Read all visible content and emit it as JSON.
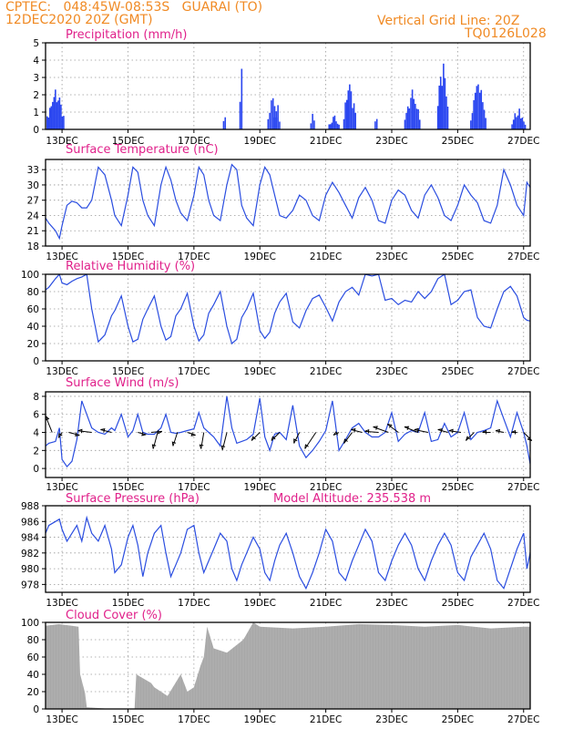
{
  "header": {
    "line1": "CPTEC:   048:45W-08:53S   GUARAI (TO)",
    "line2": "12DEC2020 20Z (GMT)",
    "grid_note": "Vertical Grid Line: 20Z",
    "code": "TQ0126L028"
  },
  "colors": {
    "header": "#f08a24",
    "title": "#e0208a",
    "line": "#2a4de0",
    "bar": "#2a46f0",
    "cloud": "#a8a8a8",
    "arrow": "#000000",
    "grid": "#999999"
  },
  "x_axis": {
    "ticks": [
      "13DEC",
      "15DEC",
      "17DEC",
      "19DEC",
      "21DEC",
      "23DEC",
      "25DEC",
      "27DEC"
    ],
    "tick_days": [
      1,
      3,
      5,
      7,
      9,
      11,
      13,
      15
    ],
    "xlim": [
      0.5,
      15.2
    ]
  },
  "chart_data": [
    {
      "type": "bar",
      "title": "Precipitation (mm/h)",
      "ylim": [
        0,
        5
      ],
      "yticks": [
        0,
        1,
        2,
        3,
        4,
        5
      ],
      "grid": true,
      "bursts": [
        {
          "day": 0.55,
          "width": 0.5,
          "peak": 2.3
        },
        {
          "day": 5.9,
          "width": 0.05,
          "peak": 0.7
        },
        {
          "day": 6.4,
          "width": 0.05,
          "peak": 3.5
        },
        {
          "day": 7.25,
          "width": 0.25,
          "peak": 1.8
        },
        {
          "day": 7.45,
          "width": 0.15,
          "peak": 1.4
        },
        {
          "day": 8.55,
          "width": 0.1,
          "peak": 0.9
        },
        {
          "day": 9.1,
          "width": 0.3,
          "peak": 0.8
        },
        {
          "day": 9.55,
          "width": 0.35,
          "peak": 2.6
        },
        {
          "day": 10.5,
          "width": 0.05,
          "peak": 0.6
        },
        {
          "day": 11.4,
          "width": 0.45,
          "peak": 2.3
        },
        {
          "day": 12.4,
          "width": 0.3,
          "peak": 3.8
        },
        {
          "day": 13.4,
          "width": 0.45,
          "peak": 2.6
        },
        {
          "day": 14.65,
          "width": 0.4,
          "peak": 1.2
        }
      ]
    },
    {
      "type": "line",
      "title": "Surface Temperature (nC)",
      "ylim": [
        18,
        35
      ],
      "yticks": [
        18,
        21,
        24,
        27,
        30,
        33
      ],
      "grid": true,
      "x": [
        0.5,
        0.6,
        0.8,
        0.92,
        1.0,
        1.15,
        1.3,
        1.45,
        1.6,
        1.75,
        1.9,
        2.1,
        2.3,
        2.5,
        2.6,
        2.8,
        3.0,
        3.15,
        3.3,
        3.45,
        3.6,
        3.8,
        4.0,
        4.15,
        4.3,
        4.45,
        4.6,
        4.8,
        5.0,
        5.15,
        5.3,
        5.45,
        5.6,
        5.8,
        6.0,
        6.15,
        6.3,
        6.45,
        6.6,
        6.8,
        7.0,
        7.15,
        7.3,
        7.45,
        7.6,
        7.8,
        8.0,
        8.2,
        8.4,
        8.6,
        8.8,
        9.0,
        9.2,
        9.4,
        9.6,
        9.8,
        10.0,
        10.2,
        10.4,
        10.6,
        10.8,
        11.0,
        11.2,
        11.4,
        11.6,
        11.8,
        12.0,
        12.2,
        12.4,
        12.6,
        12.8,
        13.0,
        13.2,
        13.4,
        13.6,
        13.8,
        14.0,
        14.2,
        14.4,
        14.6,
        14.8,
        15.0,
        15.1,
        15.2
      ],
      "values": [
        23.5,
        22.5,
        21,
        19.5,
        22,
        26,
        26.8,
        26.5,
        25.5,
        25.5,
        27,
        33.5,
        32,
        27,
        24,
        22,
        28,
        33.5,
        32.5,
        27,
        24,
        22,
        30,
        33.5,
        31,
        27,
        24.5,
        23,
        28,
        33.5,
        32,
        27,
        24,
        23,
        30,
        34,
        33,
        26,
        23.5,
        22,
        30,
        33.5,
        32,
        28,
        24,
        23.5,
        25,
        28,
        27,
        24,
        23,
        28,
        30.5,
        28.5,
        26,
        23.5,
        27.5,
        29.5,
        27,
        23,
        22.5,
        27,
        29,
        28,
        25,
        23.5,
        28,
        30,
        27.5,
        24,
        23,
        26,
        30,
        28,
        26.5,
        23,
        22.5,
        26,
        33,
        30,
        26,
        24,
        30.5,
        29.5
      ]
    },
    {
      "type": "line",
      "title": "Relative Humidity (%)",
      "ylim": [
        0,
        100
      ],
      "yticks": [
        0,
        20,
        40,
        60,
        80,
        100
      ],
      "grid": true,
      "x": [
        0.5,
        0.6,
        0.8,
        0.92,
        1.0,
        1.15,
        1.3,
        1.45,
        1.6,
        1.75,
        1.9,
        2.1,
        2.3,
        2.5,
        2.6,
        2.8,
        3.0,
        3.15,
        3.3,
        3.45,
        3.6,
        3.8,
        4.0,
        4.15,
        4.3,
        4.45,
        4.6,
        4.8,
        5.0,
        5.15,
        5.3,
        5.45,
        5.6,
        5.8,
        6.0,
        6.15,
        6.3,
        6.45,
        6.6,
        6.8,
        7.0,
        7.15,
        7.3,
        7.45,
        7.6,
        7.8,
        8.0,
        8.2,
        8.4,
        8.6,
        8.8,
        9.0,
        9.2,
        9.4,
        9.6,
        9.8,
        10.0,
        10.2,
        10.4,
        10.6,
        10.8,
        11.0,
        11.2,
        11.4,
        11.6,
        11.8,
        12.0,
        12.2,
        12.4,
        12.6,
        12.8,
        13.0,
        13.2,
        13.4,
        13.6,
        13.8,
        14.0,
        14.2,
        14.4,
        14.6,
        14.8,
        15.0,
        15.1,
        15.2
      ],
      "values": [
        82,
        85,
        95,
        100,
        90,
        88,
        92,
        95,
        97,
        100,
        60,
        22,
        30,
        52,
        58,
        75,
        40,
        22,
        25,
        48,
        60,
        75,
        40,
        24,
        28,
        52,
        60,
        78,
        40,
        23,
        30,
        55,
        65,
        80,
        40,
        20,
        25,
        50,
        60,
        78,
        35,
        26,
        33,
        55,
        68,
        78,
        45,
        38,
        58,
        72,
        76,
        62,
        46,
        68,
        80,
        85,
        76,
        100,
        98,
        100,
        70,
        72,
        65,
        70,
        68,
        80,
        72,
        80,
        95,
        100,
        65,
        70,
        80,
        82,
        50,
        40,
        38,
        60,
        80,
        86,
        75,
        50,
        47,
        46
      ]
    },
    {
      "type": "line",
      "title": "Surface Wind (m/s)",
      "ylim": [
        -1,
        8.5
      ],
      "yticks": [
        0,
        2,
        4,
        6,
        8
      ],
      "grid": true,
      "x": [
        0.5,
        0.6,
        0.8,
        0.92,
        1.0,
        1.15,
        1.3,
        1.45,
        1.6,
        1.75,
        1.9,
        2.1,
        2.3,
        2.5,
        2.6,
        2.8,
        3.0,
        3.15,
        3.3,
        3.45,
        3.6,
        3.8,
        4.0,
        4.15,
        4.3,
        4.45,
        4.6,
        4.8,
        5.0,
        5.15,
        5.3,
        5.45,
        5.6,
        5.8,
        6.0,
        6.15,
        6.3,
        6.45,
        6.6,
        6.8,
        7.0,
        7.15,
        7.3,
        7.45,
        7.6,
        7.8,
        8.0,
        8.2,
        8.4,
        8.6,
        8.8,
        9.0,
        9.2,
        9.4,
        9.6,
        9.8,
        10.0,
        10.2,
        10.4,
        10.6,
        10.8,
        11.0,
        11.2,
        11.4,
        11.6,
        11.8,
        12.0,
        12.2,
        12.4,
        12.6,
        12.8,
        13.0,
        13.2,
        13.4,
        13.6,
        13.8,
        14.0,
        14.2,
        14.4,
        14.6,
        14.8,
        15.0,
        15.1,
        15.2
      ],
      "values": [
        2.5,
        2.8,
        3.0,
        4.5,
        1.0,
        0.2,
        0.8,
        3.2,
        7.5,
        6.0,
        4.5,
        4.0,
        3.8,
        4.5,
        4.2,
        6.0,
        3.5,
        4.2,
        6.0,
        4.0,
        3.8,
        3.8,
        4.5,
        6.0,
        4.0,
        3.9,
        4.0,
        4.2,
        4.4,
        6.2,
        4.5,
        4.0,
        3.5,
        2.5,
        8.0,
        4.5,
        2.8,
        3.0,
        3.2,
        3.8,
        7.8,
        3.5,
        2.0,
        3.8,
        4.0,
        3.2,
        7.0,
        2.5,
        1.2,
        2.0,
        3.0,
        4.2,
        7.5,
        2.0,
        3.2,
        4.5,
        5.0,
        4.0,
        3.5,
        3.5,
        4.0,
        6.2,
        3.0,
        3.8,
        4.2,
        4.0,
        6.2,
        3.0,
        3.2,
        5.0,
        3.5,
        4.0,
        6.2,
        3.2,
        4.0,
        4.2,
        4.5,
        7.5,
        5.5,
        3.5,
        6.2,
        4.0,
        2.5,
        0.5
      ],
      "vectors": [
        {
          "day": 0.7,
          "u": -1.2,
          "v": 3.0
        },
        {
          "day": 1.0,
          "u": -0.6,
          "v": -1.0
        },
        {
          "day": 1.2,
          "u": 2.0,
          "v": -0.5
        },
        {
          "day": 1.9,
          "u": -2.5,
          "v": 0.3
        },
        {
          "day": 2.5,
          "u": -2.0,
          "v": 0.5
        },
        {
          "day": 3.3,
          "u": 1.5,
          "v": -0.4
        },
        {
          "day": 3.7,
          "u": 2.0,
          "v": 0.2
        },
        {
          "day": 3.9,
          "u": -0.8,
          "v": -3.0
        },
        {
          "day": 4.5,
          "u": -0.8,
          "v": -2.5
        },
        {
          "day": 4.8,
          "u": 1.5,
          "v": -0.5
        },
        {
          "day": 5.3,
          "u": -0.5,
          "v": -3.0
        },
        {
          "day": 6.0,
          "u": -0.8,
          "v": -3.2
        },
        {
          "day": 7.0,
          "u": -1.5,
          "v": -1.5
        },
        {
          "day": 7.6,
          "u": -1.5,
          "v": -1.5
        },
        {
          "day": 8.2,
          "u": -1.0,
          "v": -2.0
        },
        {
          "day": 8.7,
          "u": -2.0,
          "v": -3.0
        },
        {
          "day": 9.4,
          "u": -1.0,
          "v": -0.5
        },
        {
          "day": 9.8,
          "u": -1.5,
          "v": -2.0
        },
        {
          "day": 10.1,
          "u": -2.0,
          "v": 0.5
        },
        {
          "day": 10.6,
          "u": -2.5,
          "v": 0.2
        },
        {
          "day": 10.9,
          "u": -2.8,
          "v": 1.0
        },
        {
          "day": 11.2,
          "u": -2.0,
          "v": 1.5
        },
        {
          "day": 11.8,
          "u": -2.5,
          "v": 1.0
        },
        {
          "day": 12.1,
          "u": -2.5,
          "v": 0.5
        },
        {
          "day": 12.7,
          "u": -1.8,
          "v": 0.5
        },
        {
          "day": 13.1,
          "u": -2.2,
          "v": 0.3
        },
        {
          "day": 13.5,
          "u": -1.5,
          "v": -1.5
        },
        {
          "day": 14.0,
          "u": -1.5,
          "v": 0.0
        },
        {
          "day": 14.4,
          "u": -1.5,
          "v": 0.3
        },
        {
          "day": 14.8,
          "u": -1.0,
          "v": 0.0
        },
        {
          "day": 15.0,
          "u": 1.5,
          "v": -1.5
        }
      ]
    },
    {
      "type": "line",
      "title": "Surface Pressure (hPa)",
      "annotation": "Model Altitude: 235.538  m",
      "ylim": [
        977,
        988
      ],
      "yticks": [
        978,
        980,
        982,
        984,
        986,
        988
      ],
      "grid": true,
      "x": [
        0.5,
        0.6,
        0.8,
        0.92,
        1.0,
        1.15,
        1.3,
        1.45,
        1.6,
        1.75,
        1.9,
        2.1,
        2.3,
        2.5,
        2.6,
        2.8,
        3.0,
        3.15,
        3.3,
        3.45,
        3.6,
        3.8,
        4.0,
        4.15,
        4.3,
        4.45,
        4.6,
        4.8,
        5.0,
        5.15,
        5.3,
        5.45,
        5.6,
        5.8,
        6.0,
        6.15,
        6.3,
        6.45,
        6.6,
        6.8,
        7.0,
        7.15,
        7.3,
        7.45,
        7.6,
        7.8,
        8.0,
        8.2,
        8.4,
        8.6,
        8.8,
        9.0,
        9.2,
        9.4,
        9.6,
        9.8,
        10.0,
        10.2,
        10.4,
        10.6,
        10.8,
        11.0,
        11.2,
        11.4,
        11.6,
        11.8,
        12.0,
        12.2,
        12.4,
        12.6,
        12.8,
        13.0,
        13.2,
        13.4,
        13.6,
        13.8,
        14.0,
        14.2,
        14.4,
        14.6,
        14.8,
        15.0,
        15.1,
        15.2
      ],
      "values": [
        984.5,
        985.5,
        986,
        986.3,
        985,
        983.5,
        984.5,
        985.5,
        983.5,
        986.5,
        984.5,
        983.5,
        985.5,
        982.5,
        979.5,
        980.5,
        984,
        985.5,
        983,
        979,
        982,
        984.5,
        985.5,
        982,
        979,
        980.5,
        982,
        985,
        985.5,
        982,
        979.5,
        981,
        982.5,
        984.5,
        983.5,
        980,
        978.5,
        980.5,
        982,
        984,
        982.5,
        979.5,
        978.5,
        981,
        983,
        984.5,
        982,
        979,
        977.5,
        979.5,
        982,
        985,
        983.5,
        979.5,
        978.5,
        981,
        983,
        985,
        983.5,
        979.5,
        978.5,
        981,
        983,
        984.5,
        983,
        980,
        978.5,
        981,
        983,
        984.5,
        983,
        979.5,
        978.5,
        981.5,
        983,
        984.5,
        982.5,
        978.5,
        977.5,
        980,
        982.5,
        984.5,
        980,
        982
      ]
    },
    {
      "type": "area",
      "title": "Cloud Cover (%)",
      "ylim": [
        0,
        100
      ],
      "yticks": [
        0,
        20,
        40,
        60,
        80,
        100
      ],
      "grid": true,
      "x": [
        0.5,
        0.9,
        1.3,
        1.5,
        1.55,
        1.7,
        1.75,
        2.5,
        3.2,
        3.25,
        3.7,
        3.8,
        4.2,
        4.6,
        4.8,
        5.0,
        5.2,
        5.3,
        5.4,
        5.6,
        6.0,
        6.5,
        6.8,
        7.0,
        8.0,
        9.0,
        10.0,
        11.0,
        12.0,
        13.0,
        14.0,
        15.0,
        15.2
      ],
      "values": [
        96,
        98,
        96,
        95,
        40,
        18,
        2,
        0,
        0,
        40,
        30,
        25,
        15,
        40,
        20,
        25,
        50,
        60,
        95,
        70,
        65,
        80,
        100,
        95,
        93,
        95,
        98,
        97,
        95,
        97,
        93,
        95,
        95
      ]
    }
  ]
}
